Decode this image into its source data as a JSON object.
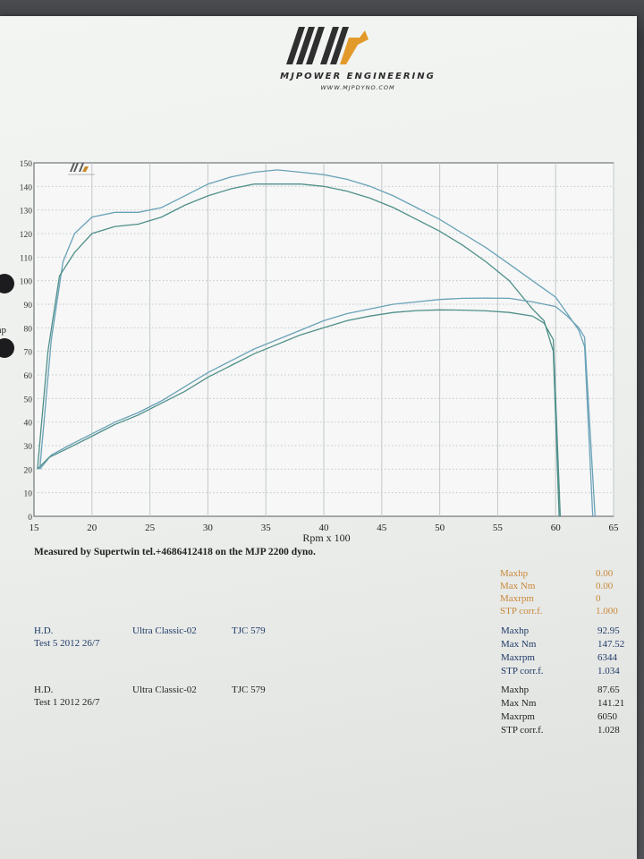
{
  "header": {
    "company": "MJPOWER ENGINEERING",
    "website": "WWW.MJPDYNO.COM"
  },
  "measured_by": "Measured by Supertwin tel.+4686412418 on the MJP 2200 dyno.",
  "colors": {
    "logo_dark": "#2f2f2f",
    "logo_orange": "#e29a2a",
    "grid": "#c4c8cc",
    "curve_test5": "#6aa2b8",
    "curve_test1": "#4f8f8a",
    "orange_text": "#c9893a",
    "blue_text": "#1f3a66"
  },
  "chart_data": {
    "type": "line",
    "title": "",
    "xlabel": "Rpm x 100",
    "ylabel": "hp",
    "xlim": [
      15,
      65
    ],
    "ylim": [
      0,
      150
    ],
    "x_ticks": [
      15,
      20,
      25,
      30,
      35,
      40,
      45,
      50,
      55,
      60,
      65
    ],
    "y_ticks": [
      0,
      10,
      20,
      30,
      40,
      50,
      60,
      70,
      80,
      90,
      100,
      110,
      120,
      130,
      140,
      150
    ],
    "grid": true,
    "legend": "none",
    "series": [
      {
        "key": "test5_torque",
        "color": "#6aa2b8",
        "x": [
          15.5,
          16.5,
          17.5,
          18.5,
          20,
          22,
          24,
          26,
          28,
          30,
          32,
          34,
          36,
          38,
          40,
          42,
          44,
          46,
          48,
          50,
          52,
          54,
          56,
          58,
          60,
          61,
          62,
          62.5,
          63.2
        ],
        "y": [
          20,
          75,
          108,
          120,
          127,
          129,
          129,
          131,
          136,
          141,
          144,
          146,
          147,
          146,
          145,
          143,
          140,
          136,
          131,
          126,
          120,
          114,
          107,
          100,
          93,
          86,
          79,
          72,
          0
        ]
      },
      {
        "key": "test1_torque",
        "color": "#4f8f8a",
        "x": [
          15.3,
          16.2,
          17.2,
          18.5,
          20,
          22,
          24,
          26,
          28,
          30,
          32,
          34,
          36,
          38,
          40,
          42,
          44,
          46,
          48,
          50,
          52,
          54,
          56,
          57,
          58,
          59,
          59.8,
          60.3
        ],
        "y": [
          20,
          70,
          102,
          112,
          120,
          123,
          124,
          127,
          132,
          136,
          139,
          141,
          141,
          141,
          140,
          138,
          135,
          131,
          126,
          121,
          115,
          108,
          100,
          94,
          88,
          83,
          70,
          0
        ]
      },
      {
        "key": "test5_power",
        "color": "#6aa2b8",
        "x": [
          15.5,
          16.5,
          18,
          20,
          22,
          24,
          26,
          28,
          30,
          32,
          34,
          36,
          38,
          40,
          42,
          44,
          46,
          48,
          50,
          52,
          54,
          56,
          58,
          60,
          61,
          62,
          62.5,
          63.4
        ],
        "y": [
          20,
          26,
          30,
          35,
          40,
          44,
          49,
          55,
          61,
          66,
          71,
          75,
          79,
          83,
          86,
          88,
          90,
          91,
          92,
          92.5,
          92.6,
          92.5,
          91,
          89,
          85,
          80,
          76,
          0
        ]
      },
      {
        "key": "test1_power",
        "color": "#4f8f8a",
        "x": [
          15.3,
          16.3,
          18,
          20,
          22,
          24,
          26,
          28,
          30,
          32,
          34,
          36,
          38,
          40,
          42,
          44,
          46,
          48,
          50,
          52,
          54,
          56,
          58,
          59,
          59.8,
          60.4
        ],
        "y": [
          20,
          25,
          29,
          34,
          39,
          43,
          48,
          53,
          59,
          64,
          69,
          73,
          77,
          80,
          83,
          85,
          86.5,
          87.3,
          87.6,
          87.5,
          87.2,
          86.5,
          85,
          82,
          75,
          0
        ]
      }
    ]
  },
  "summary_block": {
    "rows": [
      {
        "label": "Maxhp",
        "value": "0.00"
      },
      {
        "label": "Max Nm",
        "value": "0.00"
      },
      {
        "label": "Maxrpm",
        "value": "0"
      },
      {
        "label": "STP corr.f.",
        "value": "1.000"
      }
    ]
  },
  "tests": [
    {
      "make": "H.D.",
      "test": "Test 5 2012 26/7",
      "model": "Ultra Classic-02",
      "reg": "TJC 579",
      "rows": [
        {
          "label": "Maxhp",
          "value": "92.95"
        },
        {
          "label": "Max Nm",
          "value": "147.52"
        },
        {
          "label": "Maxrpm",
          "value": "6344"
        },
        {
          "label": "STP corr.f.",
          "value": "1.034"
        }
      ]
    },
    {
      "make": "H.D.",
      "test": "Test 1 2012 26/7",
      "model": "Ultra Classic-02",
      "reg": "TJC 579",
      "rows": [
        {
          "label": "Maxhp",
          "value": "87.65"
        },
        {
          "label": "Max Nm",
          "value": "141.21"
        },
        {
          "label": "Maxrpm",
          "value": "6050"
        },
        {
          "label": "STP corr.f.",
          "value": "1.028"
        }
      ]
    }
  ]
}
